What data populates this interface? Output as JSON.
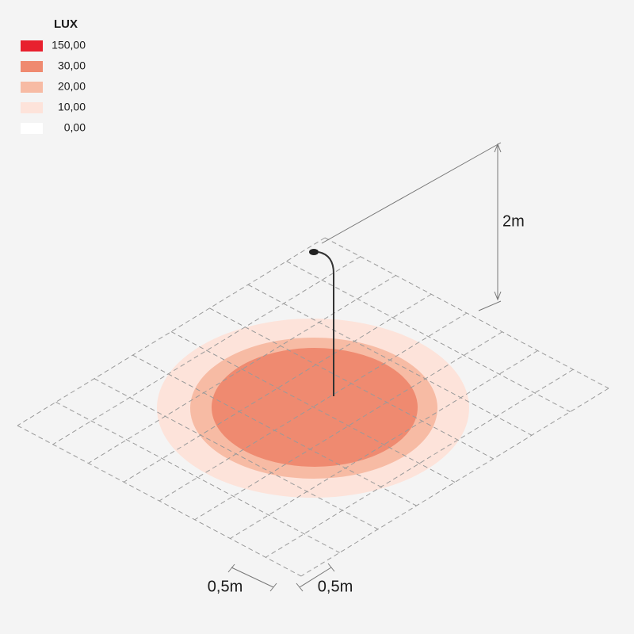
{
  "legend": {
    "title": "LUX",
    "items": [
      {
        "label": "150,00",
        "color": "#e8202e"
      },
      {
        "label": "30,00",
        "color": "#ef8a70"
      },
      {
        "label": "20,00",
        "color": "#f7bba4"
      },
      {
        "label": "10,00",
        "color": "#fde3da"
      },
      {
        "label": "0,00",
        "color": "#ffffff"
      }
    ]
  },
  "dimensions": {
    "height": "2m",
    "grid_left": "0,5m",
    "grid_right": "0,5m"
  }
}
